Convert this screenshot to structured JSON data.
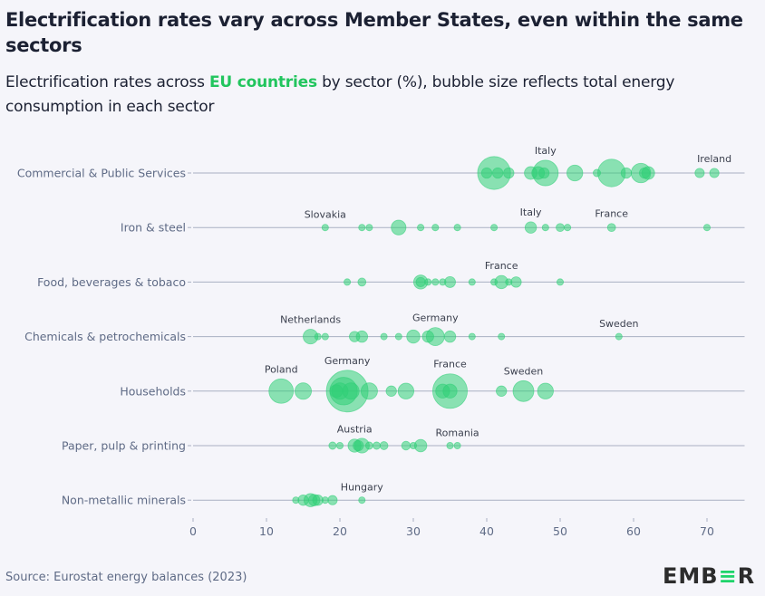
{
  "header": {
    "title": "Electrification rates vary across Member States, even within the same sectors",
    "subtitle_pre": "Electrification rates across ",
    "subtitle_highlight": "EU countries",
    "subtitle_post": " by sector (%), bubble size reflects total energy consumption in each sector"
  },
  "footer": {
    "source": "Source: Eurostat energy balances (2023)",
    "logo_pre": "EMB",
    "logo_green": "≡",
    "logo_post": "R"
  },
  "colors": {
    "bubble": "#2fcf76",
    "axis_line": "#a9b0c2",
    "label": "#5f6b86",
    "annotation": "#3a3f4d",
    "highlight": "#22c55e"
  },
  "chart_data": {
    "type": "scatter",
    "title": "Electrification rates vary across Member States, even within the same sectors",
    "xlabel": "",
    "ylabel": "",
    "xlim": [
      0,
      75
    ],
    "xticks": [
      0,
      10,
      20,
      30,
      40,
      50,
      60,
      70
    ],
    "grid": false,
    "categories": [
      "Commercial & Public Services",
      "Iron & steel",
      "Food, beverages & tobaco",
      "Chemicals & petrochemicals",
      "Households",
      "Paper, pulp & printing",
      "Non-metallic minerals"
    ],
    "series": [
      {
        "name": "Commercial & Public Services",
        "points": [
          {
            "x": 41,
            "size": 10
          },
          {
            "x": 40,
            "size": 1
          },
          {
            "x": 41.5,
            "size": 1
          },
          {
            "x": 43,
            "size": 1
          },
          {
            "x": 46,
            "size": 1.5
          },
          {
            "x": 47,
            "size": 1.5
          },
          {
            "x": 48,
            "size": 6,
            "label": "Italy"
          },
          {
            "x": 47.8,
            "size": 1
          },
          {
            "x": 52,
            "size": 2.3
          },
          {
            "x": 55,
            "size": 0.5
          },
          {
            "x": 57,
            "size": 7
          },
          {
            "x": 59,
            "size": 1
          },
          {
            "x": 61,
            "size": 3.5
          },
          {
            "x": 62,
            "size": 1.5
          },
          {
            "x": 61.5,
            "size": 1
          },
          {
            "x": 69,
            "size": 0.8
          },
          {
            "x": 71,
            "size": 0.8,
            "label": "Ireland"
          }
        ]
      },
      {
        "name": "Iron & steel",
        "points": [
          {
            "x": 18,
            "size": 0.3,
            "label": "Slovakia"
          },
          {
            "x": 23,
            "size": 0.3
          },
          {
            "x": 24,
            "size": 0.3
          },
          {
            "x": 28,
            "size": 2
          },
          {
            "x": 31,
            "size": 0.4
          },
          {
            "x": 33,
            "size": 0.4
          },
          {
            "x": 36,
            "size": 0.4
          },
          {
            "x": 41,
            "size": 0.3
          },
          {
            "x": 46,
            "size": 1.2,
            "label": "Italy"
          },
          {
            "x": 48,
            "size": 0.4
          },
          {
            "x": 50,
            "size": 0.6
          },
          {
            "x": 51,
            "size": 0.4
          },
          {
            "x": 57,
            "size": 0.6,
            "label": "France"
          },
          {
            "x": 70,
            "size": 0.3
          }
        ]
      },
      {
        "name": "Food, beverages & tobaco",
        "points": [
          {
            "x": 21,
            "size": 0.3
          },
          {
            "x": 23,
            "size": 0.6
          },
          {
            "x": 31,
            "size": 1.8
          },
          {
            "x": 31,
            "size": 0.8
          },
          {
            "x": 32,
            "size": 0.4
          },
          {
            "x": 33,
            "size": 0.4
          },
          {
            "x": 34,
            "size": 0.4
          },
          {
            "x": 35,
            "size": 1.1
          },
          {
            "x": 38,
            "size": 0.3
          },
          {
            "x": 41,
            "size": 0.3
          },
          {
            "x": 42,
            "size": 1.6,
            "label": "France"
          },
          {
            "x": 43,
            "size": 0.3
          },
          {
            "x": 44,
            "size": 1
          },
          {
            "x": 50,
            "size": 0.3
          }
        ]
      },
      {
        "name": "Chemicals & petrochemicals",
        "points": [
          {
            "x": 16,
            "size": 2,
            "label": "Netherlands"
          },
          {
            "x": 17,
            "size": 0.4
          },
          {
            "x": 18,
            "size": 0.4
          },
          {
            "x": 22,
            "size": 1
          },
          {
            "x": 23,
            "size": 1.2
          },
          {
            "x": 26,
            "size": 0.3
          },
          {
            "x": 28,
            "size": 0.3
          },
          {
            "x": 30,
            "size": 1.6
          },
          {
            "x": 32,
            "size": 1.2
          },
          {
            "x": 33,
            "size": 3,
            "label": "Germany"
          },
          {
            "x": 35,
            "size": 1.2
          },
          {
            "x": 38,
            "size": 0.3
          },
          {
            "x": 42,
            "size": 0.3
          },
          {
            "x": 58,
            "size": 0.3,
            "label": "Sweden"
          }
        ]
      },
      {
        "name": "Households",
        "points": [
          {
            "x": 12,
            "size": 5.5,
            "label": "Poland"
          },
          {
            "x": 15,
            "size": 2.5
          },
          {
            "x": 21,
            "size": 16,
            "label": "Germany"
          },
          {
            "x": 20.5,
            "size": 7
          },
          {
            "x": 20,
            "size": 2.5
          },
          {
            "x": 19.5,
            "size": 1.5
          },
          {
            "x": 21.5,
            "size": 2.5
          },
          {
            "x": 24,
            "size": 2.5
          },
          {
            "x": 27,
            "size": 1
          },
          {
            "x": 29,
            "size": 2.3
          },
          {
            "x": 35,
            "size": 11,
            "label": "France"
          },
          {
            "x": 34,
            "size": 1.8
          },
          {
            "x": 35,
            "size": 1.8
          },
          {
            "x": 42,
            "size": 1
          },
          {
            "x": 45,
            "size": 4,
            "label": "Sweden"
          },
          {
            "x": 48,
            "size": 2.3
          }
        ]
      },
      {
        "name": "Paper, pulp & printing",
        "points": [
          {
            "x": 19,
            "size": 0.5
          },
          {
            "x": 20,
            "size": 0.4
          },
          {
            "x": 22,
            "size": 1.6,
            "label": "Austria"
          },
          {
            "x": 23,
            "size": 2
          },
          {
            "x": 22.5,
            "size": 1
          },
          {
            "x": 24,
            "size": 0.5
          },
          {
            "x": 25,
            "size": 0.5
          },
          {
            "x": 26,
            "size": 0.6
          },
          {
            "x": 29,
            "size": 0.7
          },
          {
            "x": 30,
            "size": 0.4
          },
          {
            "x": 31,
            "size": 1.4
          },
          {
            "x": 35,
            "size": 0.3
          },
          {
            "x": 36,
            "size": 0.3,
            "label": "Romania"
          }
        ]
      },
      {
        "name": "Non-metallic minerals",
        "points": [
          {
            "x": 14,
            "size": 0.3
          },
          {
            "x": 15,
            "size": 1
          },
          {
            "x": 16,
            "size": 1.6
          },
          {
            "x": 16.5,
            "size": 1.2
          },
          {
            "x": 17,
            "size": 1
          },
          {
            "x": 18,
            "size": 0.4
          },
          {
            "x": 19,
            "size": 0.8
          },
          {
            "x": 23,
            "size": 0.3,
            "label": "Hungary"
          }
        ]
      }
    ]
  }
}
